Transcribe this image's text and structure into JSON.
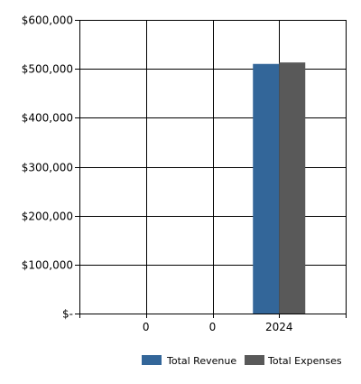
{
  "chart_data": {
    "type": "bar",
    "categories": [
      "0",
      "0",
      "2024"
    ],
    "series": [
      {
        "name": "Total Revenue",
        "color": "#336699",
        "values": [
          null,
          null,
          510000
        ]
      },
      {
        "name": "Total Expenses",
        "color": "#595959",
        "values": [
          null,
          null,
          513000
        ]
      }
    ],
    "ylim": [
      0,
      600000
    ],
    "y_ticks": [
      {
        "value": 0,
        "label": "$-"
      },
      {
        "value": 100000,
        "label": "$100,000"
      },
      {
        "value": 200000,
        "label": "$200,000"
      },
      {
        "value": 300000,
        "label": "$300,000"
      },
      {
        "value": 400000,
        "label": "$400,000"
      },
      {
        "value": 500000,
        "label": "$500,000"
      },
      {
        "value": 600000,
        "label": "$600,000"
      }
    ],
    "grid": true,
    "legend_position": "bottom-right"
  }
}
